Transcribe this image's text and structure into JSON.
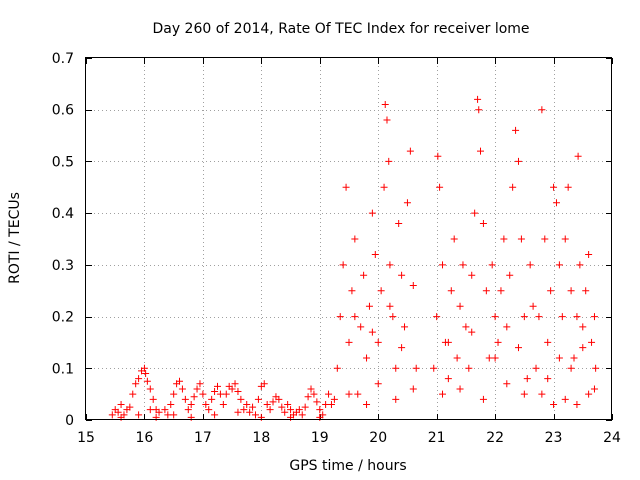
{
  "chart_data": {
    "type": "scatter",
    "title": "Day 260 of 2014, Rate Of TEC Index for receiver lome",
    "xlabel": "GPS time / hours",
    "ylabel": "ROTI / TECUs",
    "xlim": [
      15,
      24
    ],
    "ylim": [
      0,
      0.7
    ],
    "xticks": [
      "15",
      "16",
      "17",
      "18",
      "19",
      "20",
      "21",
      "22",
      "23",
      "24"
    ],
    "yticks": [
      "0",
      "0.1",
      "0.2",
      "0.3",
      "0.4",
      "0.5",
      "0.6",
      "0.7"
    ],
    "grid": true,
    "marker": "+",
    "color": "#ff0000",
    "series": [
      {
        "values": [
          [
            15.45,
            0.01
          ],
          [
            15.5,
            0.02
          ],
          [
            15.55,
            0.015
          ],
          [
            15.6,
            0.03
          ],
          [
            15.65,
            0.01
          ],
          [
            15.7,
            0.02
          ],
          [
            15.75,
            0.025
          ],
          [
            15.8,
            0.05
          ],
          [
            15.85,
            0.07
          ],
          [
            15.9,
            0.08
          ],
          [
            15.95,
            0.095
          ],
          [
            16.0,
            0.1
          ],
          [
            16.02,
            0.09
          ],
          [
            16.05,
            0.075
          ],
          [
            16.1,
            0.06
          ],
          [
            16.15,
            0.04
          ],
          [
            16.2,
            0.02
          ],
          [
            16.25,
            0.015
          ],
          [
            15.6,
            0.005
          ],
          [
            15.9,
            0.01
          ],
          [
            16.1,
            0.02
          ],
          [
            16.2,
            0.005
          ],
          [
            16.35,
            0.02
          ],
          [
            16.4,
            0.01
          ],
          [
            16.45,
            0.03
          ],
          [
            16.5,
            0.05
          ],
          [
            16.55,
            0.07
          ],
          [
            16.6,
            0.075
          ],
          [
            16.65,
            0.06
          ],
          [
            16.7,
            0.04
          ],
          [
            16.75,
            0.02
          ],
          [
            16.8,
            0.03
          ],
          [
            16.85,
            0.045
          ],
          [
            16.9,
            0.06
          ],
          [
            16.95,
            0.07
          ],
          [
            17.0,
            0.05
          ],
          [
            17.05,
            0.03
          ],
          [
            17.1,
            0.02
          ],
          [
            17.15,
            0.04
          ],
          [
            17.2,
            0.055
          ],
          [
            17.25,
            0.065
          ],
          [
            17.3,
            0.05
          ],
          [
            17.35,
            0.03
          ],
          [
            17.4,
            0.05
          ],
          [
            17.45,
            0.065
          ],
          [
            17.5,
            0.06
          ],
          [
            17.55,
            0.07
          ],
          [
            17.6,
            0.055
          ],
          [
            17.65,
            0.04
          ],
          [
            17.7,
            0.02
          ],
          [
            17.75,
            0.03
          ],
          [
            17.8,
            0.015
          ],
          [
            17.85,
            0.025
          ],
          [
            17.9,
            0.01
          ],
          [
            17.95,
            0.04
          ],
          [
            18.0,
            0.065
          ],
          [
            18.05,
            0.07
          ],
          [
            18.1,
            0.03
          ],
          [
            16.5,
            0.01
          ],
          [
            16.8,
            0.005
          ],
          [
            17.2,
            0.01
          ],
          [
            17.6,
            0.015
          ],
          [
            18.0,
            0.005
          ],
          [
            18.15,
            0.02
          ],
          [
            18.2,
            0.035
          ],
          [
            18.25,
            0.045
          ],
          [
            18.3,
            0.04
          ],
          [
            18.35,
            0.025
          ],
          [
            18.4,
            0.015
          ],
          [
            18.45,
            0.03
          ],
          [
            18.5,
            0.02
          ],
          [
            18.55,
            0.01
          ],
          [
            18.6,
            0.015
          ],
          [
            18.65,
            0.02
          ],
          [
            18.7,
            0.01
          ],
          [
            18.75,
            0.025
          ],
          [
            18.8,
            0.045
          ],
          [
            18.85,
            0.06
          ],
          [
            18.9,
            0.05
          ],
          [
            18.95,
            0.035
          ],
          [
            19.0,
            0.02
          ],
          [
            19.05,
            0.01
          ],
          [
            19.1,
            0.03
          ],
          [
            19.15,
            0.05
          ],
          [
            19.2,
            0.03
          ],
          [
            19.25,
            0.04
          ],
          [
            18.5,
            0.005
          ],
          [
            19.0,
            0.005
          ],
          [
            19.3,
            0.1
          ],
          [
            19.35,
            0.2
          ],
          [
            19.4,
            0.3
          ],
          [
            19.45,
            0.45
          ],
          [
            19.5,
            0.15
          ],
          [
            19.55,
            0.25
          ],
          [
            19.6,
            0.35
          ],
          [
            19.65,
            0.05
          ],
          [
            19.7,
            0.18
          ],
          [
            19.75,
            0.28
          ],
          [
            19.8,
            0.12
          ],
          [
            19.85,
            0.22
          ],
          [
            19.9,
            0.4
          ],
          [
            19.95,
            0.32
          ],
          [
            20.0,
            0.15
          ],
          [
            20.05,
            0.25
          ],
          [
            20.1,
            0.45
          ],
          [
            20.12,
            0.61
          ],
          [
            20.15,
            0.58
          ],
          [
            20.18,
            0.5
          ],
          [
            20.2,
            0.3
          ],
          [
            20.25,
            0.2
          ],
          [
            20.3,
            0.1
          ],
          [
            20.35,
            0.38
          ],
          [
            20.4,
            0.28
          ],
          [
            20.45,
            0.18
          ],
          [
            20.5,
            0.42
          ],
          [
            20.55,
            0.52
          ],
          [
            20.6,
            0.26
          ],
          [
            20.65,
            0.1
          ],
          [
            19.5,
            0.05
          ],
          [
            19.8,
            0.03
          ],
          [
            20.0,
            0.07
          ],
          [
            20.3,
            0.04
          ],
          [
            20.6,
            0.06
          ],
          [
            19.6,
            0.2
          ],
          [
            19.9,
            0.17
          ],
          [
            20.2,
            0.22
          ],
          [
            20.4,
            0.14
          ],
          [
            20.95,
            0.1
          ],
          [
            21.0,
            0.2
          ],
          [
            21.02,
            0.51
          ],
          [
            21.05,
            0.45
          ],
          [
            21.1,
            0.3
          ],
          [
            21.15,
            0.15
          ],
          [
            21.2,
            0.08
          ],
          [
            21.25,
            0.25
          ],
          [
            21.3,
            0.35
          ],
          [
            21.35,
            0.12
          ],
          [
            21.4,
            0.22
          ],
          [
            21.45,
            0.3
          ],
          [
            21.5,
            0.18
          ],
          [
            21.55,
            0.1
          ],
          [
            21.6,
            0.28
          ],
          [
            21.65,
            0.4
          ],
          [
            21.7,
            0.62
          ],
          [
            21.72,
            0.6
          ],
          [
            21.75,
            0.52
          ],
          [
            21.8,
            0.38
          ],
          [
            21.85,
            0.25
          ],
          [
            21.9,
            0.12
          ],
          [
            21.95,
            0.3
          ],
          [
            22.0,
            0.2
          ],
          [
            22.05,
            0.15
          ],
          [
            22.1,
            0.25
          ],
          [
            22.15,
            0.35
          ],
          [
            22.2,
            0.18
          ],
          [
            22.25,
            0.28
          ],
          [
            22.3,
            0.45
          ],
          [
            22.35,
            0.56
          ],
          [
            22.4,
            0.5
          ],
          [
            22.45,
            0.35
          ],
          [
            22.5,
            0.2
          ],
          [
            22.55,
            0.08
          ],
          [
            22.6,
            0.3
          ],
          [
            22.65,
            0.22
          ],
          [
            21.1,
            0.05
          ],
          [
            21.4,
            0.06
          ],
          [
            21.8,
            0.04
          ],
          [
            22.2,
            0.07
          ],
          [
            22.5,
            0.05
          ],
          [
            21.2,
            0.15
          ],
          [
            21.6,
            0.17
          ],
          [
            22.0,
            0.12
          ],
          [
            22.4,
            0.14
          ],
          [
            22.7,
            0.1
          ],
          [
            22.75,
            0.2
          ],
          [
            22.8,
            0.6
          ],
          [
            22.85,
            0.35
          ],
          [
            22.9,
            0.15
          ],
          [
            22.95,
            0.25
          ],
          [
            23.0,
            0.45
          ],
          [
            23.05,
            0.42
          ],
          [
            23.1,
            0.3
          ],
          [
            23.15,
            0.2
          ],
          [
            23.2,
            0.35
          ],
          [
            23.25,
            0.45
          ],
          [
            23.3,
            0.25
          ],
          [
            23.35,
            0.12
          ],
          [
            23.4,
            0.2
          ],
          [
            23.42,
            0.51
          ],
          [
            23.45,
            0.3
          ],
          [
            23.5,
            0.18
          ],
          [
            23.55,
            0.25
          ],
          [
            23.6,
            0.32
          ],
          [
            23.65,
            0.15
          ],
          [
            23.7,
            0.2
          ],
          [
            23.72,
            0.1
          ],
          [
            22.8,
            0.05
          ],
          [
            23.0,
            0.03
          ],
          [
            23.2,
            0.04
          ],
          [
            23.4,
            0.03
          ],
          [
            23.6,
            0.05
          ],
          [
            22.9,
            0.08
          ],
          [
            23.1,
            0.12
          ],
          [
            23.3,
            0.1
          ],
          [
            23.5,
            0.14
          ],
          [
            23.7,
            0.06
          ]
        ]
      }
    ]
  }
}
